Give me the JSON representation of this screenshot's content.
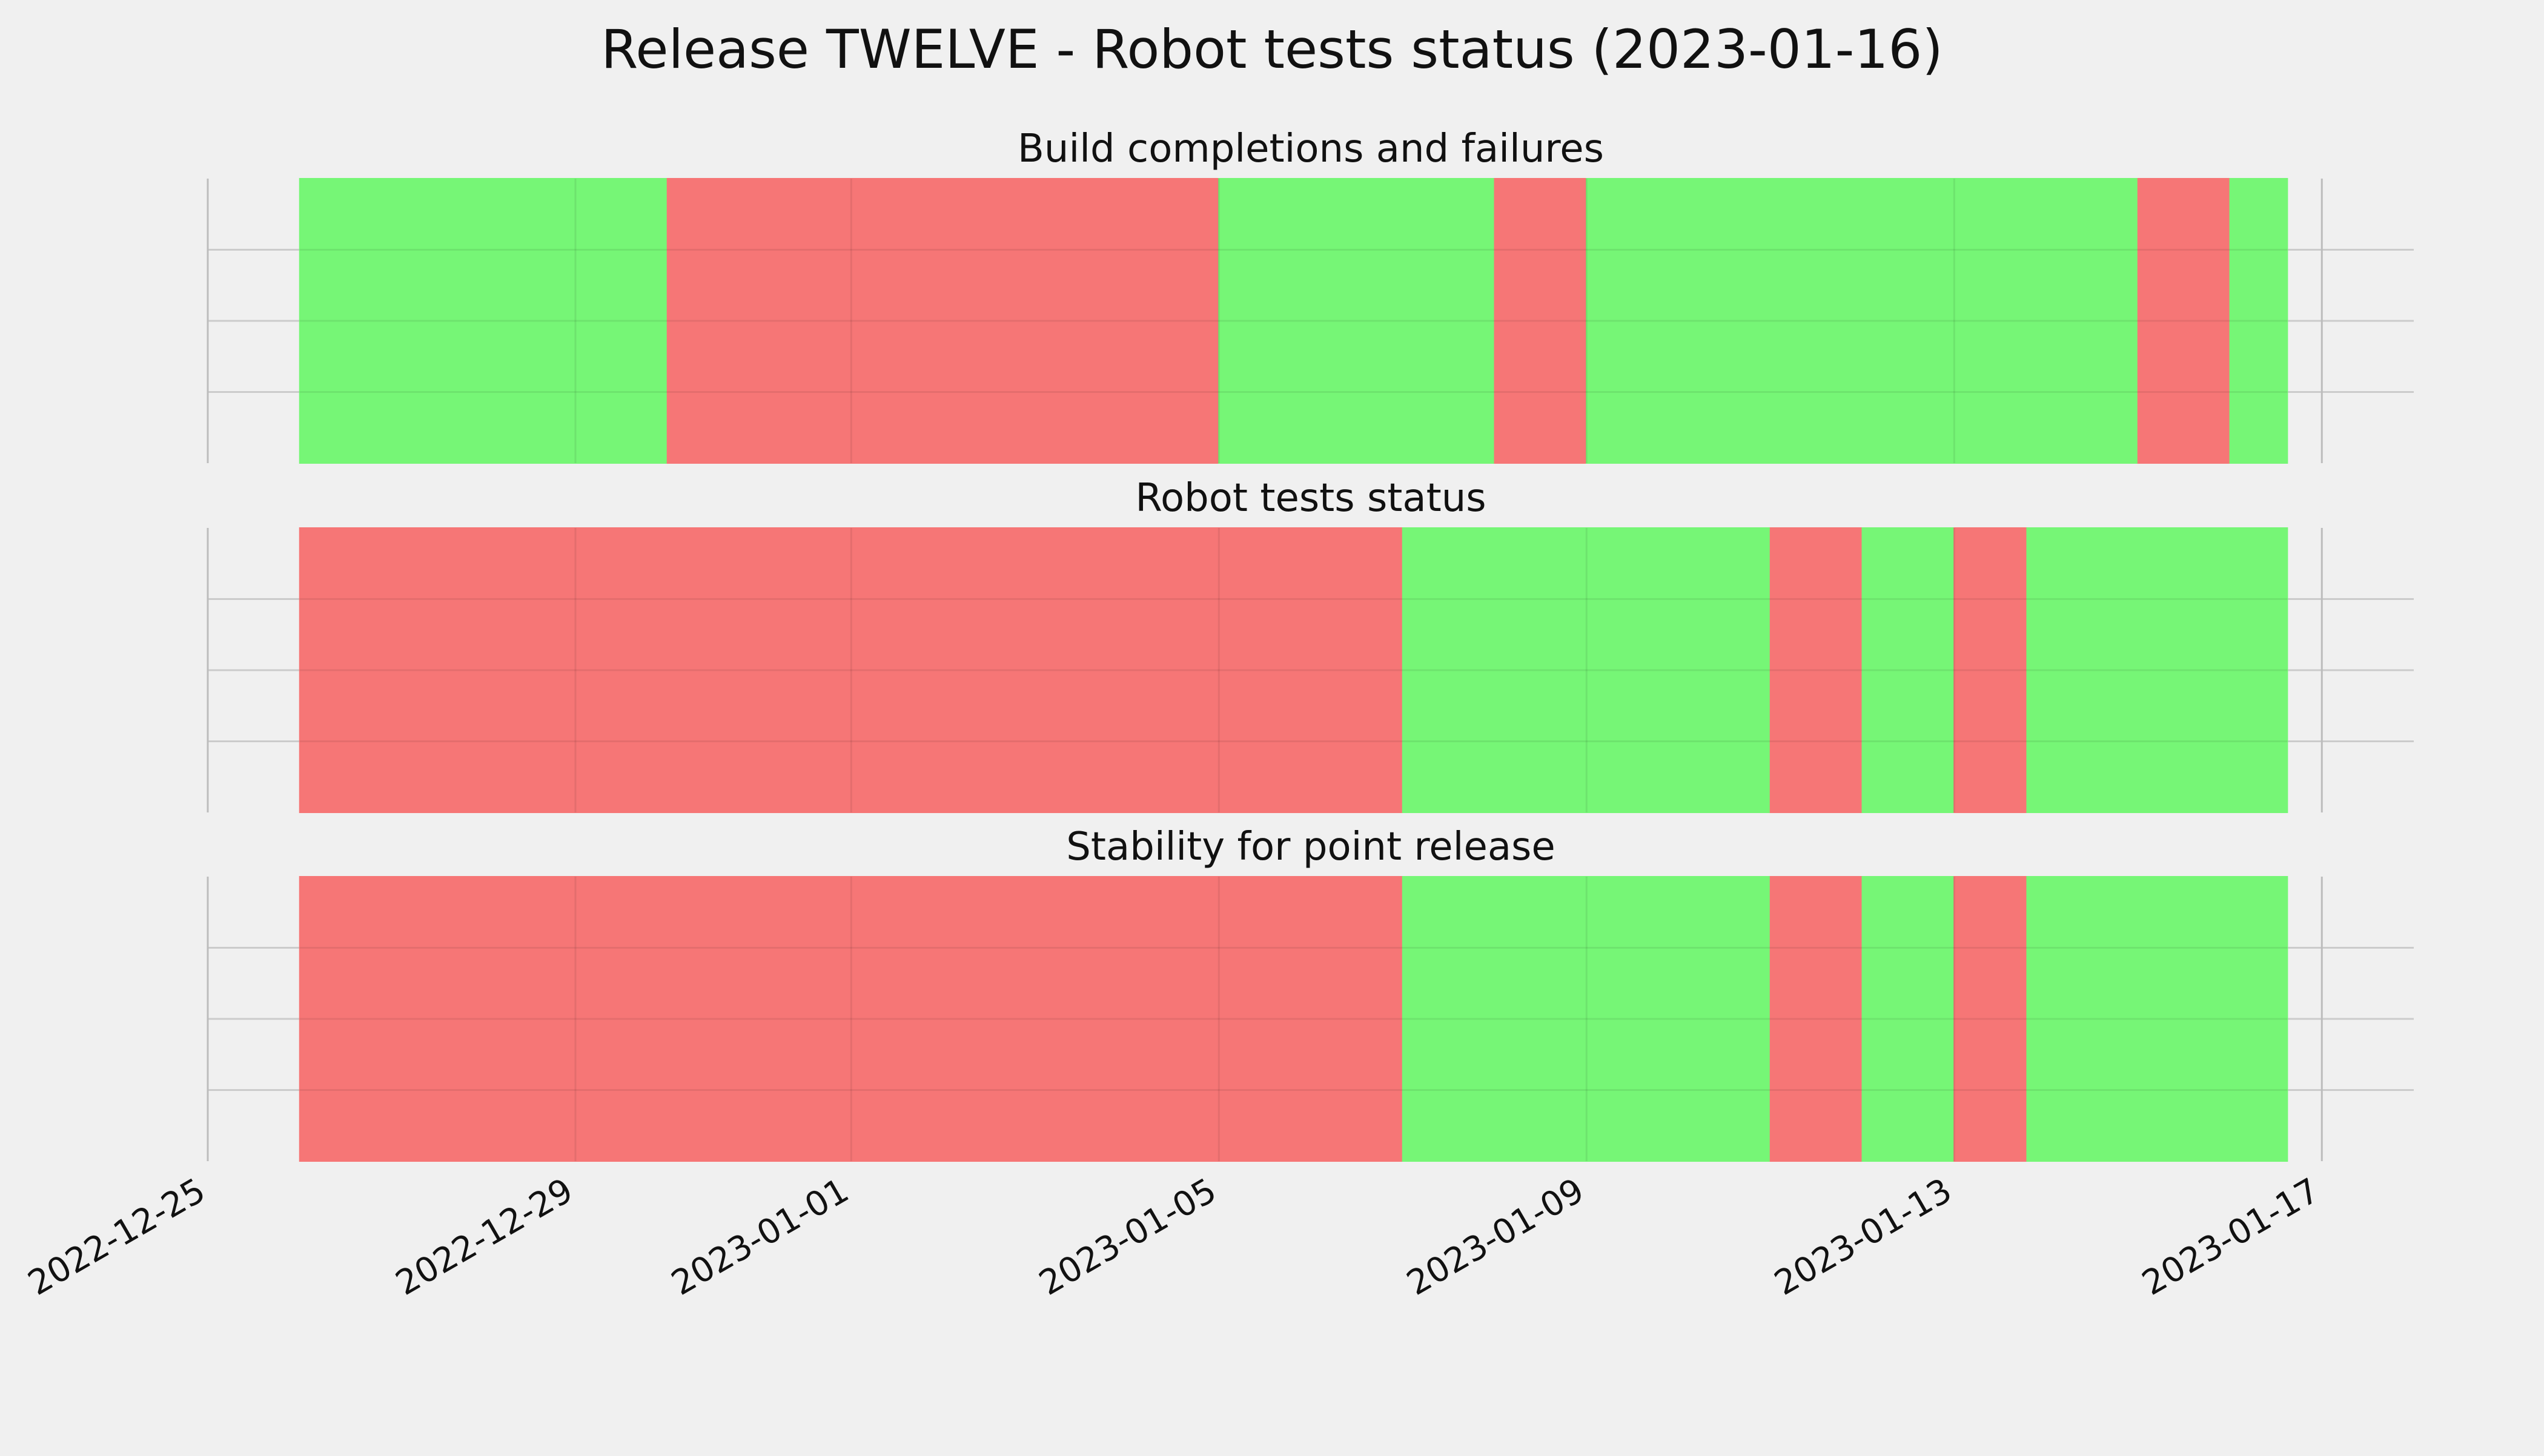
{
  "chart_data": {
    "type": "timeline",
    "title": "Release TWELVE - Robot tests status (2023-01-16)",
    "x_axis": {
      "type": "date",
      "range": [
        "2022-12-25T00:00",
        "2023-01-18T00:00"
      ],
      "ticks": [
        "2022-12-25",
        "2022-12-29",
        "2023-01-01",
        "2023-01-05",
        "2023-01-09",
        "2023-01-13",
        "2023-01-17"
      ]
    },
    "grid": true,
    "colors": {
      "pass": "#76f676",
      "fail": "#f67676",
      "background": "#f0f0f0"
    },
    "panels": [
      {
        "title": "Build completions and failures",
        "segments": [
          {
            "start": "2022-12-26T00:00",
            "end": "2022-12-30T00:00",
            "status": "pass"
          },
          {
            "start": "2022-12-30T00:00",
            "end": "2023-01-05T00:00",
            "status": "fail"
          },
          {
            "start": "2023-01-05T00:00",
            "end": "2023-01-08T00:00",
            "status": "pass"
          },
          {
            "start": "2023-01-08T00:00",
            "end": "2023-01-09T00:00",
            "status": "fail"
          },
          {
            "start": "2023-01-09T00:00",
            "end": "2023-01-15T00:00",
            "status": "pass"
          },
          {
            "start": "2023-01-15T00:00",
            "end": "2023-01-16T00:00",
            "status": "fail"
          },
          {
            "start": "2023-01-16T00:00",
            "end": "2023-01-16T15:00",
            "status": "pass"
          }
        ]
      },
      {
        "title": "Robot tests status",
        "segments": [
          {
            "start": "2022-12-26T00:00",
            "end": "2023-01-07T00:00",
            "status": "fail"
          },
          {
            "start": "2023-01-07T00:00",
            "end": "2023-01-11T00:00",
            "status": "pass"
          },
          {
            "start": "2023-01-11T00:00",
            "end": "2023-01-12T00:00",
            "status": "fail"
          },
          {
            "start": "2023-01-12T00:00",
            "end": "2023-01-13T00:00",
            "status": "pass"
          },
          {
            "start": "2023-01-13T00:00",
            "end": "2023-01-13T19:00",
            "status": "fail"
          },
          {
            "start": "2023-01-13T19:00",
            "end": "2023-01-16T15:00",
            "status": "pass"
          }
        ]
      },
      {
        "title": "Stability for point release",
        "segments": [
          {
            "start": "2022-12-26T00:00",
            "end": "2023-01-07T00:00",
            "status": "fail"
          },
          {
            "start": "2023-01-07T00:00",
            "end": "2023-01-11T00:00",
            "status": "pass"
          },
          {
            "start": "2023-01-11T00:00",
            "end": "2023-01-12T00:00",
            "status": "fail"
          },
          {
            "start": "2023-01-12T00:00",
            "end": "2023-01-13T00:00",
            "status": "pass"
          },
          {
            "start": "2023-01-13T00:00",
            "end": "2023-01-13T19:00",
            "status": "fail"
          },
          {
            "start": "2023-01-13T19:00",
            "end": "2023-01-16T15:00",
            "status": "pass"
          }
        ]
      }
    ]
  }
}
